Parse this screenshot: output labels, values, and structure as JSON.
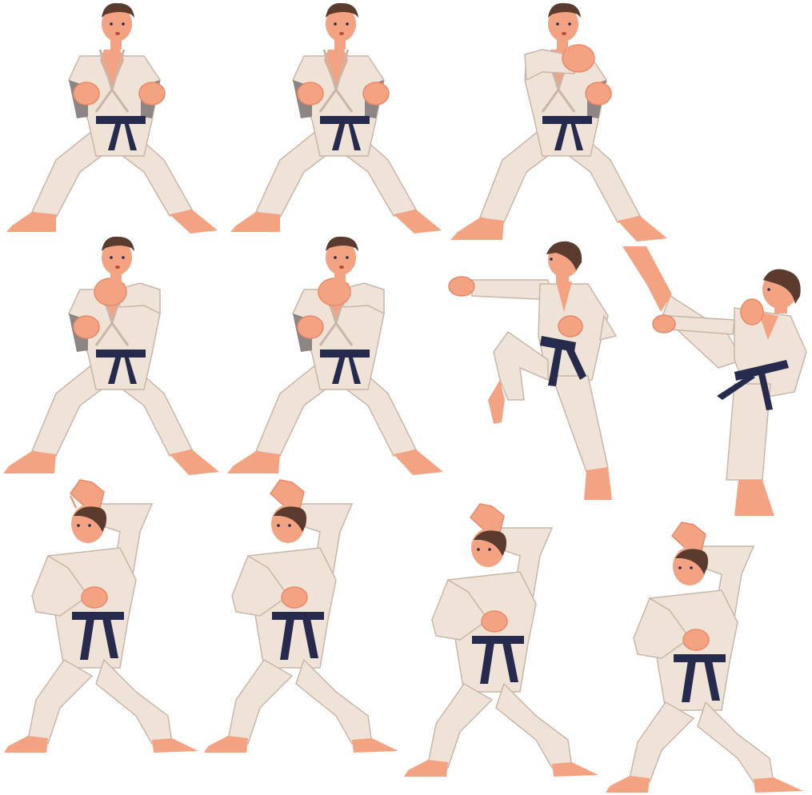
{
  "scene": {
    "background": "#ffffff",
    "colors": {
      "skin": "#f3a381",
      "skin_shade": "#e8896a",
      "gi": "#efe3d8",
      "gi_shade": "#d9c8bb",
      "gi_outline": "#c9b6a8",
      "belt": "#262a4d",
      "hair": "#5a3b2e",
      "arm_shade": "#8d8583"
    },
    "figures": [
      {
        "pose": "ready-stance-front"
      },
      {
        "pose": "ready-stance-front"
      },
      {
        "pose": "punch-front"
      },
      {
        "pose": "punch-front"
      },
      {
        "pose": "punch-front"
      },
      {
        "pose": "knee-raise-punch"
      },
      {
        "pose": "high-kick"
      },
      {
        "pose": "block-stance"
      },
      {
        "pose": "block-stance"
      },
      {
        "pose": "block-stance"
      },
      {
        "pose": "block-stance"
      }
    ]
  }
}
